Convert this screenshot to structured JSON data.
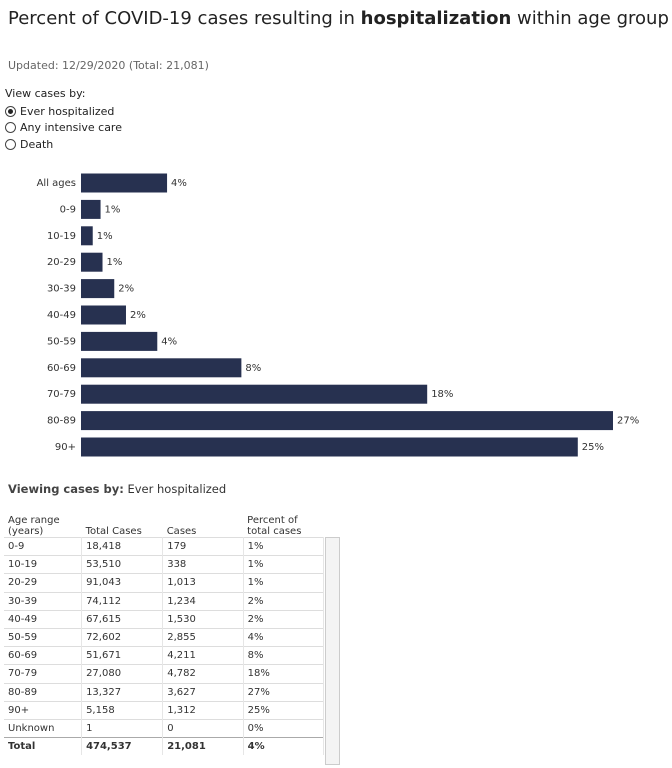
{
  "header": {
    "title_parts": [
      "Percent of COVID-19 cases resulting in",
      "hospitalization",
      "within age group"
    ],
    "updated": "Updated: 12/29/2020 (Total: 21,081)"
  },
  "selector": {
    "label": "View cases by:",
    "options": [
      "Ever hospitalized",
      "Any intensive care",
      "Death"
    ],
    "selected": 0
  },
  "chart_data": {
    "type": "hbar",
    "categories": [
      "All ages",
      "0-9",
      "10-19",
      "20-29",
      "30-39",
      "40-49",
      "50-59",
      "60-69",
      "70-79",
      "80-89",
      "90+"
    ],
    "values": [
      4.4,
      1.0,
      0.6,
      1.1,
      1.7,
      2.3,
      3.9,
      8.2,
      17.7,
      27.2,
      25.4
    ],
    "value_labels": [
      "4%",
      "1%",
      "1%",
      "1%",
      "2%",
      "2%",
      "4%",
      "8%",
      "18%",
      "27%",
      "25%"
    ],
    "color": "#273150"
  },
  "viewing": {
    "label": "Viewing cases by:",
    "value": "Ever hospitalized"
  },
  "table": {
    "columns": [
      "Age range (years)",
      "Total Cases",
      "Cases",
      "Percent of total cases"
    ],
    "rows": [
      [
        "0-9",
        "18,418",
        "179",
        "1%"
      ],
      [
        "10-19",
        "53,510",
        "338",
        "1%"
      ],
      [
        "20-29",
        "91,043",
        "1,013",
        "1%"
      ],
      [
        "30-39",
        "74,112",
        "1,234",
        "2%"
      ],
      [
        "40-49",
        "67,615",
        "1,530",
        "2%"
      ],
      [
        "50-59",
        "72,602",
        "2,855",
        "4%"
      ],
      [
        "60-69",
        "51,671",
        "4,211",
        "8%"
      ],
      [
        "70-79",
        "27,080",
        "4,782",
        "18%"
      ],
      [
        "80-89",
        "13,327",
        "3,627",
        "27%"
      ],
      [
        "90+",
        "5,158",
        "1,312",
        "25%"
      ],
      [
        "Unknown",
        "1",
        "0",
        "0%"
      ]
    ],
    "total": [
      "Total",
      "474,537",
      "21,081",
      "4%"
    ]
  }
}
